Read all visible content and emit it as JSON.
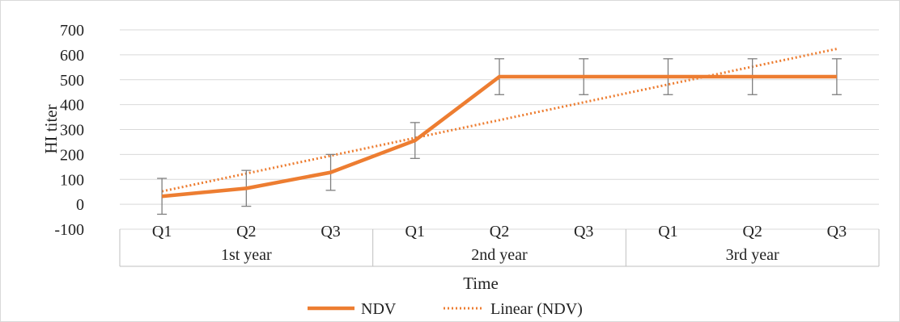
{
  "chart_data": {
    "type": "line",
    "title": "",
    "xlabel": "Time",
    "ylabel": "HI titer",
    "ylim": [
      -100,
      700
    ],
    "yticks": [
      -100,
      0,
      100,
      200,
      300,
      400,
      500,
      600,
      700
    ],
    "grid": true,
    "legend_position": "bottom",
    "groups": [
      {
        "label": "1st year",
        "categories": [
          "Q1",
          "Q2",
          "Q3"
        ]
      },
      {
        "label": "2nd year",
        "categories": [
          "Q1",
          "Q2",
          "Q3"
        ]
      },
      {
        "label": "3rd year",
        "categories": [
          "Q1",
          "Q2",
          "Q3"
        ]
      }
    ],
    "series": [
      {
        "name": "NDV",
        "values": [
          32,
          64,
          128,
          256,
          512,
          512,
          512,
          512,
          512
        ],
        "error": [
          72,
          72,
          72,
          72,
          72,
          72,
          72,
          72,
          72
        ],
        "color": "#ED7D31",
        "style": "solid"
      }
    ],
    "trendline": {
      "name": "Linear (NDV)",
      "of_series": "NDV",
      "kind": "linear",
      "color": "#ED7D31",
      "style": "dotted"
    }
  },
  "colors": {
    "grid": "#d9d9d9",
    "axis": "#bfbfbf",
    "error_bar": "#7f7f7f",
    "frame": "#d9d9d9"
  }
}
